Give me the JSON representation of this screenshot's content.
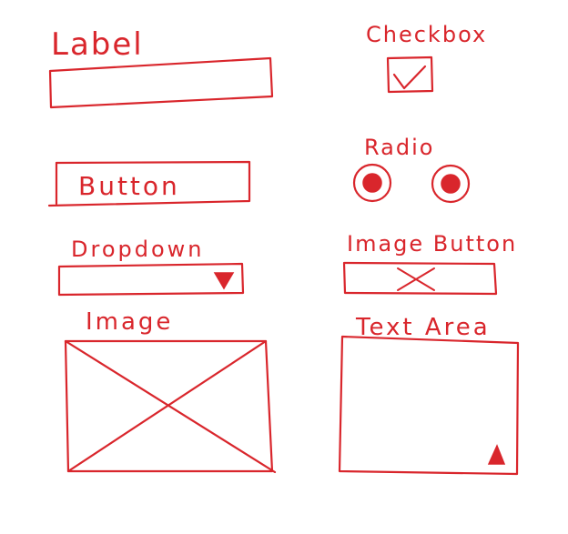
{
  "colors": {
    "ink": "#d9262c",
    "background": "#ffffff"
  },
  "labels": {
    "label": "Label",
    "checkbox": "Checkbox",
    "radio": "Radio",
    "button": "Button",
    "dropdown": "Dropdown",
    "image_button": "Image Button",
    "image": "Image",
    "text_area": "Text Area"
  },
  "widgets": {
    "checkbox_checked": true,
    "radio_count": 2,
    "dropdown_icon": "triangle-down-icon",
    "image_button_icon": "cross-icon",
    "image_placeholder_icon": "cross-icon",
    "text_area_resize_icon": "resize-grip-icon"
  }
}
